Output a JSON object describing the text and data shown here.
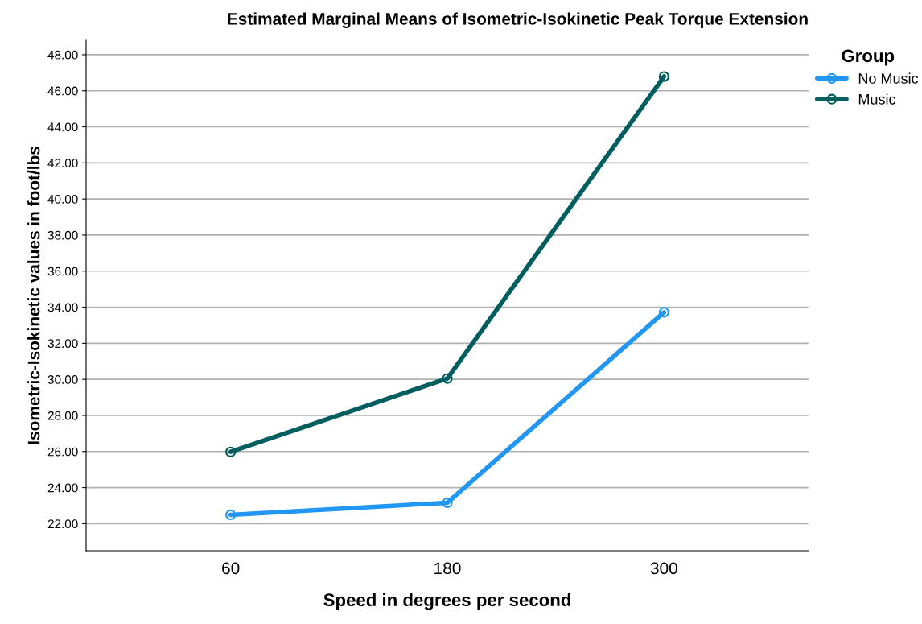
{
  "chart_data": {
    "type": "line",
    "title": "Estimated Marginal Means of Isometric-Isokinetic Peak Torque Extension",
    "xlabel": "Speed in degrees per second",
    "ylabel": "Isometric-Isokinetic values in foot/lbs",
    "categories": [
      "60",
      "180",
      "300"
    ],
    "series": [
      {
        "name": "No Music",
        "color": "#2196f3",
        "values": [
          22.49,
          23.16,
          33.72
        ]
      },
      {
        "name": "Music",
        "color": "#005e5e",
        "values": [
          25.98,
          30.05,
          46.79
        ]
      }
    ],
    "ylim": [
      20.5,
      48.8
    ],
    "yticks": [
      {
        "value": 22,
        "label": "22.00"
      },
      {
        "value": 24,
        "label": "24.00"
      },
      {
        "value": 26,
        "label": "26.00"
      },
      {
        "value": 28,
        "label": "28.00"
      },
      {
        "value": 30,
        "label": "30.00"
      },
      {
        "value": 32,
        "label": "32.00"
      },
      {
        "value": 34,
        "label": "34.00"
      },
      {
        "value": 36,
        "label": "36.00"
      },
      {
        "value": 38,
        "label": "38.00"
      },
      {
        "value": 40,
        "label": "40.00"
      },
      {
        "value": 42,
        "label": "42.00"
      },
      {
        "value": 44,
        "label": "44.00"
      },
      {
        "value": 46,
        "label": "46.00"
      },
      {
        "value": 48,
        "label": "48.00"
      }
    ],
    "grid": "y",
    "legend": "top right",
    "legend_title": "Group",
    "marker": "circle",
    "line_style": "solid"
  }
}
